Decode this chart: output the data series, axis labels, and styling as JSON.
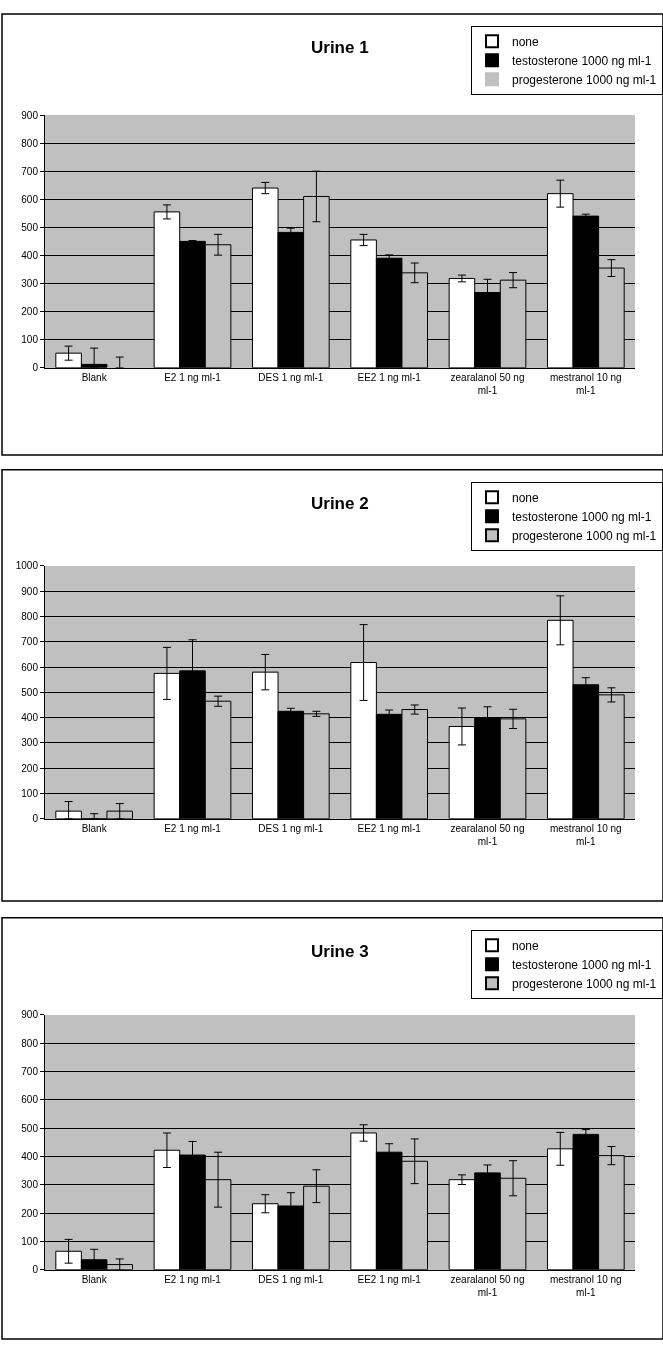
{
  "chart_data": [
    {
      "type": "bar",
      "title": "Urine 1",
      "categories": [
        "Blank",
        "E2 1 ng ml-1",
        "DES 1 ng ml-1",
        "EE2 1 ng ml-1",
        "zearalanol 50 ng ml-1",
        "mestranol 10 ng ml-1"
      ],
      "ylim": [
        0,
        900
      ],
      "yticks": [
        0,
        100,
        200,
        300,
        400,
        500,
        600,
        700,
        800,
        900
      ],
      "grid": "y",
      "legend": "top right",
      "series": [
        {
          "name": "none",
          "color": "#ffffff",
          "values": [
            52,
            555,
            640,
            455,
            318,
            620
          ],
          "errors": [
            25,
            25,
            20,
            20,
            12,
            48
          ]
        },
        {
          "name": "testosterone 1000 ng ml-1",
          "color": "#000000",
          "values": [
            12,
            450,
            482,
            390,
            268,
            540
          ],
          "errors": [
            [
              0,
              70
            ],
            3,
            15,
            12,
            47,
            7
          ]
        },
        {
          "name": "progesterone 1000 ng ml-1",
          "color": "#c0c0c0",
          "values": [
            0,
            438,
            610,
            338,
            312,
            355
          ],
          "errors": [
            [
              0,
              38
            ],
            37,
            90,
            35,
            27,
            30
          ]
        }
      ]
    },
    {
      "type": "bar",
      "title": "Urine 2",
      "categories": [
        "Blank",
        "E2 1 ng ml-1",
        "DES 1 ng ml-1",
        "EE2 1 ng ml-1",
        "zearalanol 50 ng ml-1",
        "mestranol 10 ng ml-1"
      ],
      "ylim": [
        0,
        1000
      ],
      "yticks": [
        0,
        100,
        200,
        300,
        400,
        500,
        600,
        700,
        800,
        900,
        1000
      ],
      "grid": "y",
      "legend": "top right",
      "series": [
        {
          "name": "none",
          "color": "#ffffff",
          "values": [
            30,
            575,
            580,
            618,
            365,
            785
          ],
          "errors": [
            [
              0,
              68
            ],
            103,
            70,
            150,
            73,
            97
          ]
        },
        {
          "name": "testosterone 1000 ng ml-1",
          "color": "#000000",
          "values": [
            0,
            585,
            425,
            413,
            400,
            530
          ],
          "errors": [
            [
              0,
              20
            ],
            123,
            12,
            17,
            43,
            28
          ]
        },
        {
          "name": "progesterone 1000 ng ml-1",
          "color": "#c0c0c0",
          "values": [
            30,
            465,
            415,
            432,
            395,
            490
          ],
          "errors": [
            30,
            20,
            10,
            18,
            38,
            28
          ]
        }
      ]
    },
    {
      "type": "bar",
      "title": "Urine 3",
      "categories": [
        "Blank",
        "E2 1 ng ml-1",
        "DES 1 ng ml-1",
        "EE2 1 ng ml-1",
        "zearalanol 50 ng ml-1",
        "mestranol 10 ng ml-1"
      ],
      "ylim": [
        0,
        900
      ],
      "yticks": [
        0,
        100,
        200,
        300,
        400,
        500,
        600,
        700,
        800,
        900
      ],
      "grid": "y",
      "legend": "top right",
      "series": [
        {
          "name": "none",
          "color": "#ffffff",
          "values": [
            65,
            422,
            233,
            483,
            318,
            427
          ],
          "errors": [
            42,
            61,
            32,
            29,
            17,
            58
          ]
        },
        {
          "name": "testosterone 1000 ng ml-1",
          "color": "#000000",
          "values": [
            35,
            405,
            225,
            415,
            342,
            478
          ],
          "errors": [
            37,
            48,
            47,
            30,
            28,
            17
          ]
        },
        {
          "name": "progesterone 1000 ng ml-1",
          "color": "#c0c0c0",
          "values": [
            18,
            318,
            295,
            383,
            323,
            403
          ],
          "errors": [
            20,
            97,
            58,
            79,
            62,
            32
          ]
        }
      ]
    }
  ]
}
